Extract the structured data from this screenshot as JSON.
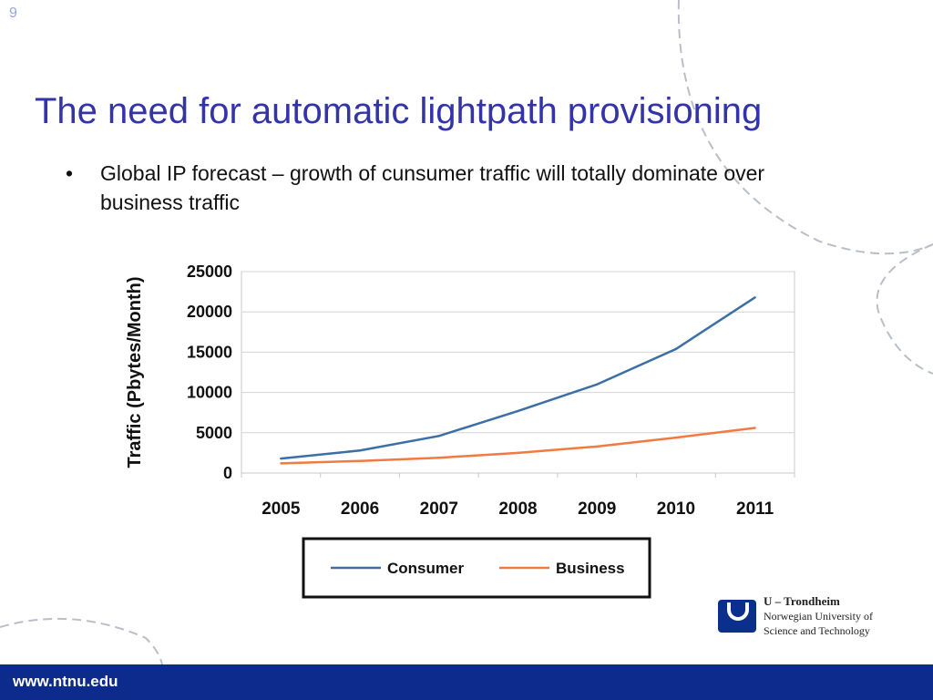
{
  "slide": {
    "number": "9",
    "title": "The need for automatic lightpath provisioning",
    "bullets": [
      {
        "marker": "•",
        "text": "Global IP forecast – growth of cunsumer traffic will totally dominate over business traffic"
      }
    ]
  },
  "chart_data": {
    "type": "line",
    "title": "",
    "xlabel": "",
    "ylabel": "Traffic (Pbytes/Month)",
    "x": [
      2005,
      2006,
      2007,
      2008,
      2009,
      2010,
      2011
    ],
    "categories": [
      "2005",
      "2006",
      "2007",
      "2008",
      "2009",
      "2010",
      "2011"
    ],
    "yticks": [
      "0",
      "5000",
      "10000",
      "15000",
      "20000",
      "25000"
    ],
    "ylim": [
      0,
      25000
    ],
    "grid": "horizontal",
    "legend_position": "bottom",
    "series": [
      {
        "name": "Consumer",
        "color": "#3b6fa6",
        "values": [
          1800,
          2800,
          4600,
          7700,
          11000,
          15400,
          21800
        ]
      },
      {
        "name": "Business",
        "color": "#f07a42",
        "values": [
          1200,
          1500,
          1900,
          2500,
          3300,
          4400,
          5600
        ]
      }
    ]
  },
  "logo": {
    "line1": "U – Trondheim",
    "line2": "Norwegian University of",
    "line3": "Science and Technology"
  },
  "footer": {
    "url": "www.ntnu.edu"
  }
}
